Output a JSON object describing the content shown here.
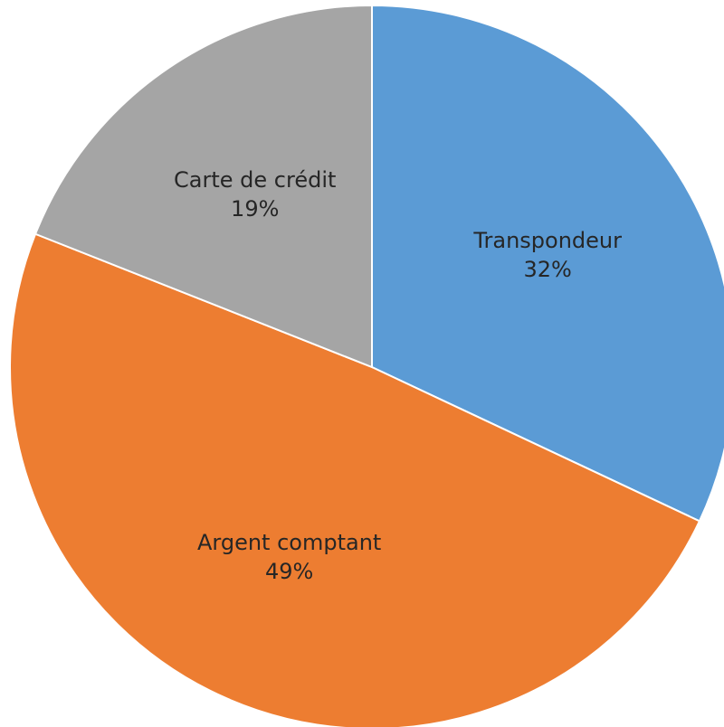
{
  "chart_data": {
    "type": "pie",
    "categories": [
      "Transpondeur",
      "Argent comptant",
      "Carte de crédit"
    ],
    "values": [
      32,
      49,
      19
    ],
    "value_labels": [
      "32%",
      "49%",
      "19%"
    ],
    "colors": [
      "#5b9bd5",
      "#ed7d31",
      "#a5a5a5"
    ]
  }
}
